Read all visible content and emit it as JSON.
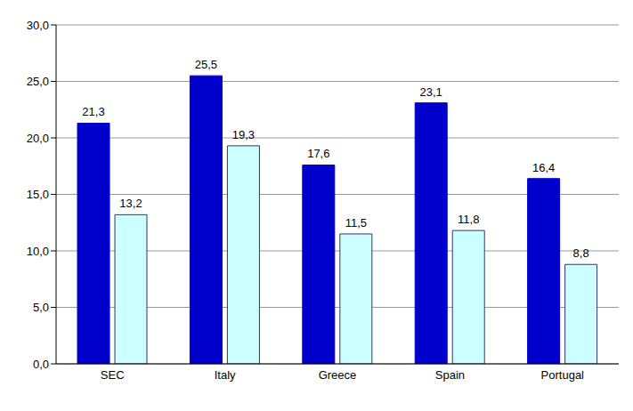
{
  "chart_data": {
    "type": "bar",
    "categories": [
      "SEC",
      "Italy",
      "Greece",
      "Spain",
      "Portugal"
    ],
    "series": [
      {
        "color": "#0000CC",
        "values": [
          21.3,
          25.5,
          17.6,
          23.1,
          16.4
        ],
        "value_labels": [
          "21,3",
          "25,5",
          "17,6",
          "23,1",
          "16,4"
        ]
      },
      {
        "color": "#CCFFFF",
        "values": [
          13.2,
          19.3,
          11.5,
          11.8,
          8.8
        ],
        "value_labels": [
          "13,2",
          "19,3",
          "11,5",
          "11,8",
          "8,8"
        ]
      }
    ],
    "ylim": [
      0,
      30
    ],
    "yticks": [
      {
        "value": 0,
        "label": "0,0"
      },
      {
        "value": 5,
        "label": "5,0"
      },
      {
        "value": 10,
        "label": "10,0"
      },
      {
        "value": 15,
        "label": "15,0"
      },
      {
        "value": 20,
        "label": "20,0"
      },
      {
        "value": 25,
        "label": "25,0"
      },
      {
        "value": 30,
        "label": "30,0"
      }
    ],
    "grid": true,
    "data_labels": true
  }
}
